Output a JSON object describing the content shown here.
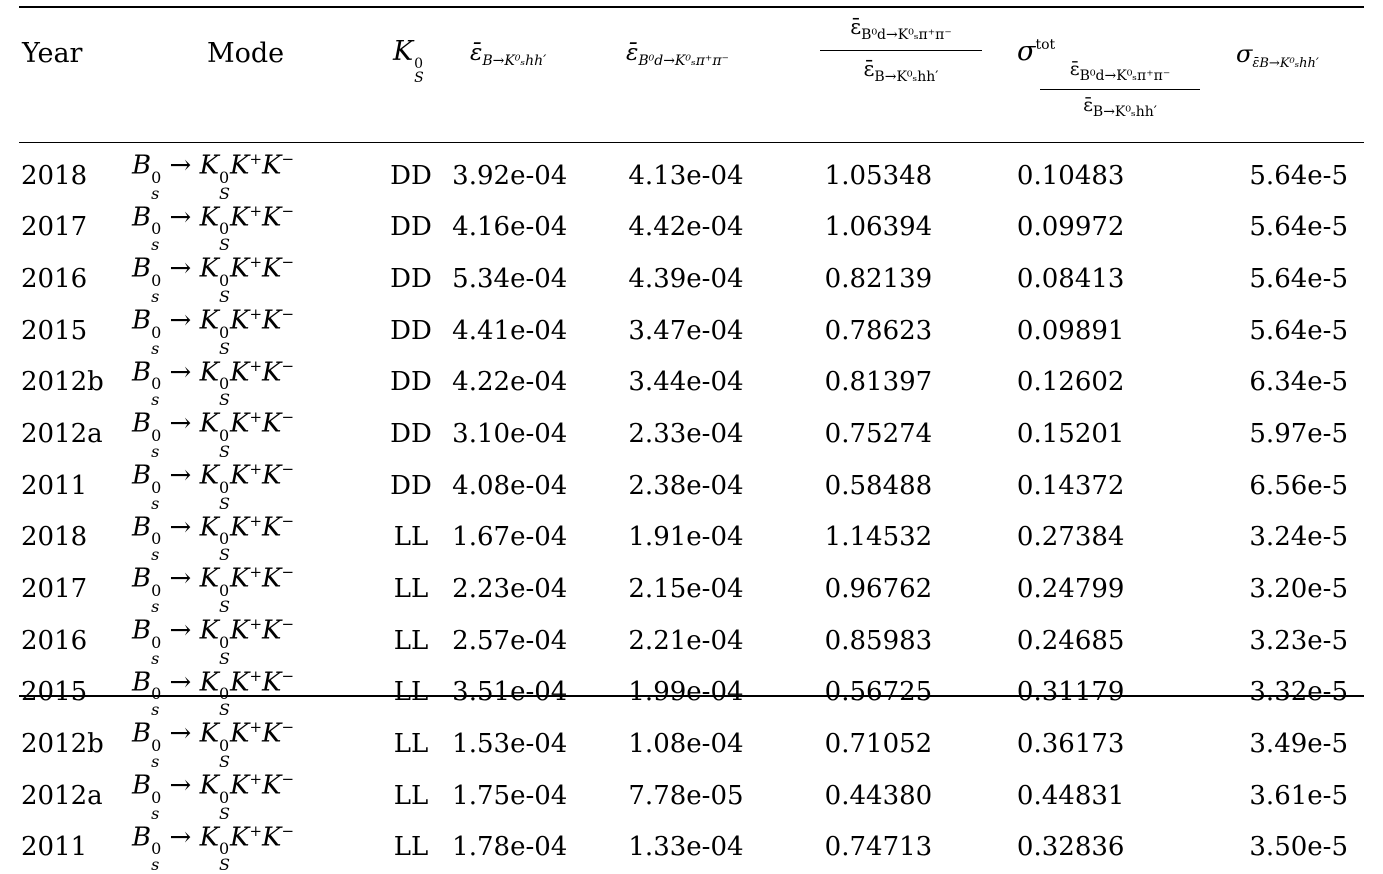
{
  "table": {
    "headers": {
      "year": "Year",
      "mode": "Mode",
      "ks": "K",
      "ks_sup": "0",
      "ks_sub": "S",
      "eff_b_khh": "ε̄",
      "eff_b_khh_sub": "B→K⁰ₛhh′",
      "eff_bd_kpipi": "ε̄",
      "eff_bd_kpipi_sub": "B⁰d→K⁰ₛπ⁺π⁻",
      "ratio_num": "ε̄",
      "ratio_num_sub": "B⁰d→K⁰ₛπ⁺π⁻",
      "ratio_den": "ε̄",
      "ratio_den_sub": "B→K⁰ₛhh′",
      "sigma_tot": "σ",
      "sigma_tot_sup": "tot",
      "sigma_tot_num": "ε̄",
      "sigma_tot_num_sub": "B⁰d→K⁰ₛπ⁺π⁻",
      "sigma_tot_den": "ε̄",
      "sigma_tot_den_sub": "B→K⁰ₛhh′",
      "sigma_eff": "σ",
      "sigma_eff_sub": "ε̄B→K⁰ₛhh′"
    },
    "mode_text": {
      "b": "B",
      "b_sup": "0",
      "b_sub": "s",
      "arrow": " → ",
      "k": "K",
      "k_sup": "0",
      "k_sub": "S",
      "kp": "K",
      "kp_sup": "+",
      "km": "K",
      "km_sup": "−"
    },
    "rows": [
      {
        "year": "2018",
        "ks": "DD",
        "e1": "3.92e-04",
        "e2": "4.13e-04",
        "ratio": "1.05348",
        "sig": "0.10483",
        "sige": "5.64e-5"
      },
      {
        "year": "2017",
        "ks": "DD",
        "e1": "4.16e-04",
        "e2": "4.42e-04",
        "ratio": "1.06394",
        "sig": "0.09972",
        "sige": "5.64e-5"
      },
      {
        "year": "2016",
        "ks": "DD",
        "e1": "5.34e-04",
        "e2": "4.39e-04",
        "ratio": "0.82139",
        "sig": "0.08413",
        "sige": "5.64e-5"
      },
      {
        "year": "2015",
        "ks": "DD",
        "e1": "4.41e-04",
        "e2": "3.47e-04",
        "ratio": "0.78623",
        "sig": "0.09891",
        "sige": "5.64e-5"
      },
      {
        "year": "2012b",
        "ks": "DD",
        "e1": "4.22e-04",
        "e2": "3.44e-04",
        "ratio": "0.81397",
        "sig": "0.12602",
        "sige": "6.34e-5"
      },
      {
        "year": "2012a",
        "ks": "DD",
        "e1": "3.10e-04",
        "e2": "2.33e-04",
        "ratio": "0.75274",
        "sig": "0.15201",
        "sige": "5.97e-5"
      },
      {
        "year": "2011",
        "ks": "DD",
        "e1": "4.08e-04",
        "e2": "2.38e-04",
        "ratio": "0.58488",
        "sig": "0.14372",
        "sige": "6.56e-5"
      },
      {
        "year": "2018",
        "ks": "LL",
        "e1": "1.67e-04",
        "e2": "1.91e-04",
        "ratio": "1.14532",
        "sig": "0.27384",
        "sige": "3.24e-5"
      },
      {
        "year": "2017",
        "ks": "LL",
        "e1": "2.23e-04",
        "e2": "2.15e-04",
        "ratio": "0.96762",
        "sig": "0.24799",
        "sige": "3.20e-5"
      },
      {
        "year": "2016",
        "ks": "LL",
        "e1": "2.57e-04",
        "e2": "2.21e-04",
        "ratio": "0.85983",
        "sig": "0.24685",
        "sige": "3.23e-5"
      },
      {
        "year": "2015",
        "ks": "LL",
        "e1": "3.51e-04",
        "e2": "1.99e-04",
        "ratio": "0.56725",
        "sig": "0.31179",
        "sige": "3.32e-5"
      },
      {
        "year": "2012b",
        "ks": "LL",
        "e1": "1.53e-04",
        "e2": "1.08e-04",
        "ratio": "0.71052",
        "sig": "0.36173",
        "sige": "3.49e-5"
      },
      {
        "year": "2012a",
        "ks": "LL",
        "e1": "1.75e-04",
        "e2": "7.78e-05",
        "ratio": "0.44380",
        "sig": "0.44831",
        "sige": "3.61e-5"
      },
      {
        "year": "2011",
        "ks": "LL",
        "e1": "1.78e-04",
        "e2": "1.33e-04",
        "ratio": "0.74713",
        "sig": "0.32836",
        "sige": "3.50e-5"
      }
    ]
  }
}
